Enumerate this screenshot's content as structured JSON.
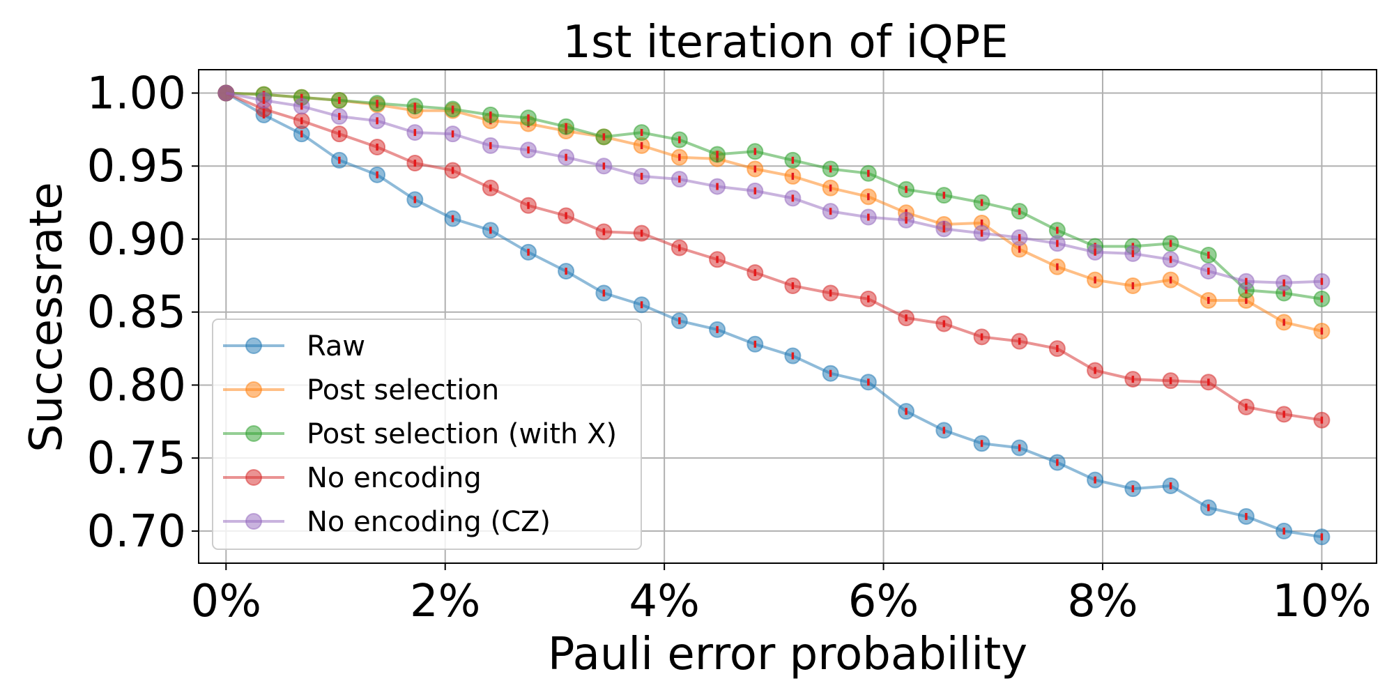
{
  "chart_data": {
    "type": "line",
    "title": "1st iteration of iQPE",
    "xlabel": "Pauli error probability",
    "ylabel": "Successrate",
    "xlim": [
      -0.25,
      10.5
    ],
    "ylim": [
      0.678,
      1.016
    ],
    "xticks": [
      0,
      2,
      4,
      6,
      8,
      10
    ],
    "xtick_labels": [
      "0%",
      "2%",
      "4%",
      "6%",
      "8%",
      "10%"
    ],
    "yticks": [
      0.7,
      0.75,
      0.8,
      0.85,
      0.9,
      0.95,
      1.0
    ],
    "ytick_labels": [
      "0.70",
      "0.75",
      "0.80",
      "0.85",
      "0.90",
      "0.95",
      "1.00"
    ],
    "grid": true,
    "legend_position": "lower-left",
    "x": [
      0,
      0.345,
      0.69,
      1.034,
      1.379,
      1.724,
      2.069,
      2.414,
      2.759,
      3.103,
      3.448,
      3.793,
      4.138,
      4.483,
      4.828,
      5.172,
      5.517,
      5.862,
      6.207,
      6.552,
      6.897,
      7.241,
      7.586,
      7.931,
      8.276,
      8.621,
      8.966,
      9.31,
      9.655,
      10
    ],
    "series": [
      {
        "name": "Raw",
        "color": "#1f77b4",
        "values": [
          1.0,
          0.985,
          0.972,
          0.954,
          0.944,
          0.927,
          0.914,
          0.906,
          0.891,
          0.878,
          0.863,
          0.855,
          0.844,
          0.838,
          0.828,
          0.82,
          0.808,
          0.802,
          0.782,
          0.769,
          0.76,
          0.757,
          0.747,
          0.735,
          0.729,
          0.731,
          0.716,
          0.71,
          0.7,
          0.696
        ]
      },
      {
        "name": "Post selection",
        "color": "#ff7f0e",
        "values": [
          1.0,
          0.999,
          0.997,
          0.995,
          0.992,
          0.988,
          0.988,
          0.981,
          0.979,
          0.974,
          0.97,
          0.964,
          0.956,
          0.955,
          0.948,
          0.943,
          0.935,
          0.929,
          0.918,
          0.91,
          0.911,
          0.893,
          0.881,
          0.872,
          0.868,
          0.872,
          0.858,
          0.858,
          0.843,
          0.837
        ]
      },
      {
        "name": "Post selection (with X)",
        "color": "#2ca02c",
        "values": [
          1.0,
          0.999,
          0.997,
          0.995,
          0.993,
          0.991,
          0.989,
          0.985,
          0.983,
          0.977,
          0.97,
          0.973,
          0.968,
          0.958,
          0.96,
          0.954,
          0.948,
          0.945,
          0.934,
          0.93,
          0.925,
          0.919,
          0.906,
          0.895,
          0.895,
          0.897,
          0.889,
          0.865,
          0.863,
          0.859
        ]
      },
      {
        "name": "No encoding",
        "color": "#d62728",
        "values": [
          1.0,
          0.989,
          0.981,
          0.972,
          0.963,
          0.952,
          0.947,
          0.935,
          0.923,
          0.916,
          0.905,
          0.904,
          0.894,
          0.886,
          0.877,
          0.868,
          0.863,
          0.859,
          0.846,
          0.842,
          0.833,
          0.83,
          0.825,
          0.81,
          0.804,
          0.803,
          0.802,
          0.785,
          0.78,
          0.776
        ]
      },
      {
        "name": "No encoding (CZ)",
        "color": "#9467bd",
        "values": [
          1.0,
          0.995,
          0.991,
          0.984,
          0.981,
          0.973,
          0.972,
          0.964,
          0.961,
          0.956,
          0.95,
          0.943,
          0.941,
          0.936,
          0.933,
          0.928,
          0.919,
          0.915,
          0.913,
          0.907,
          0.904,
          0.901,
          0.897,
          0.891,
          0.89,
          0.886,
          0.878,
          0.871,
          0.87,
          0.871
        ]
      }
    ],
    "errorbar_color": "#e41a1c"
  }
}
